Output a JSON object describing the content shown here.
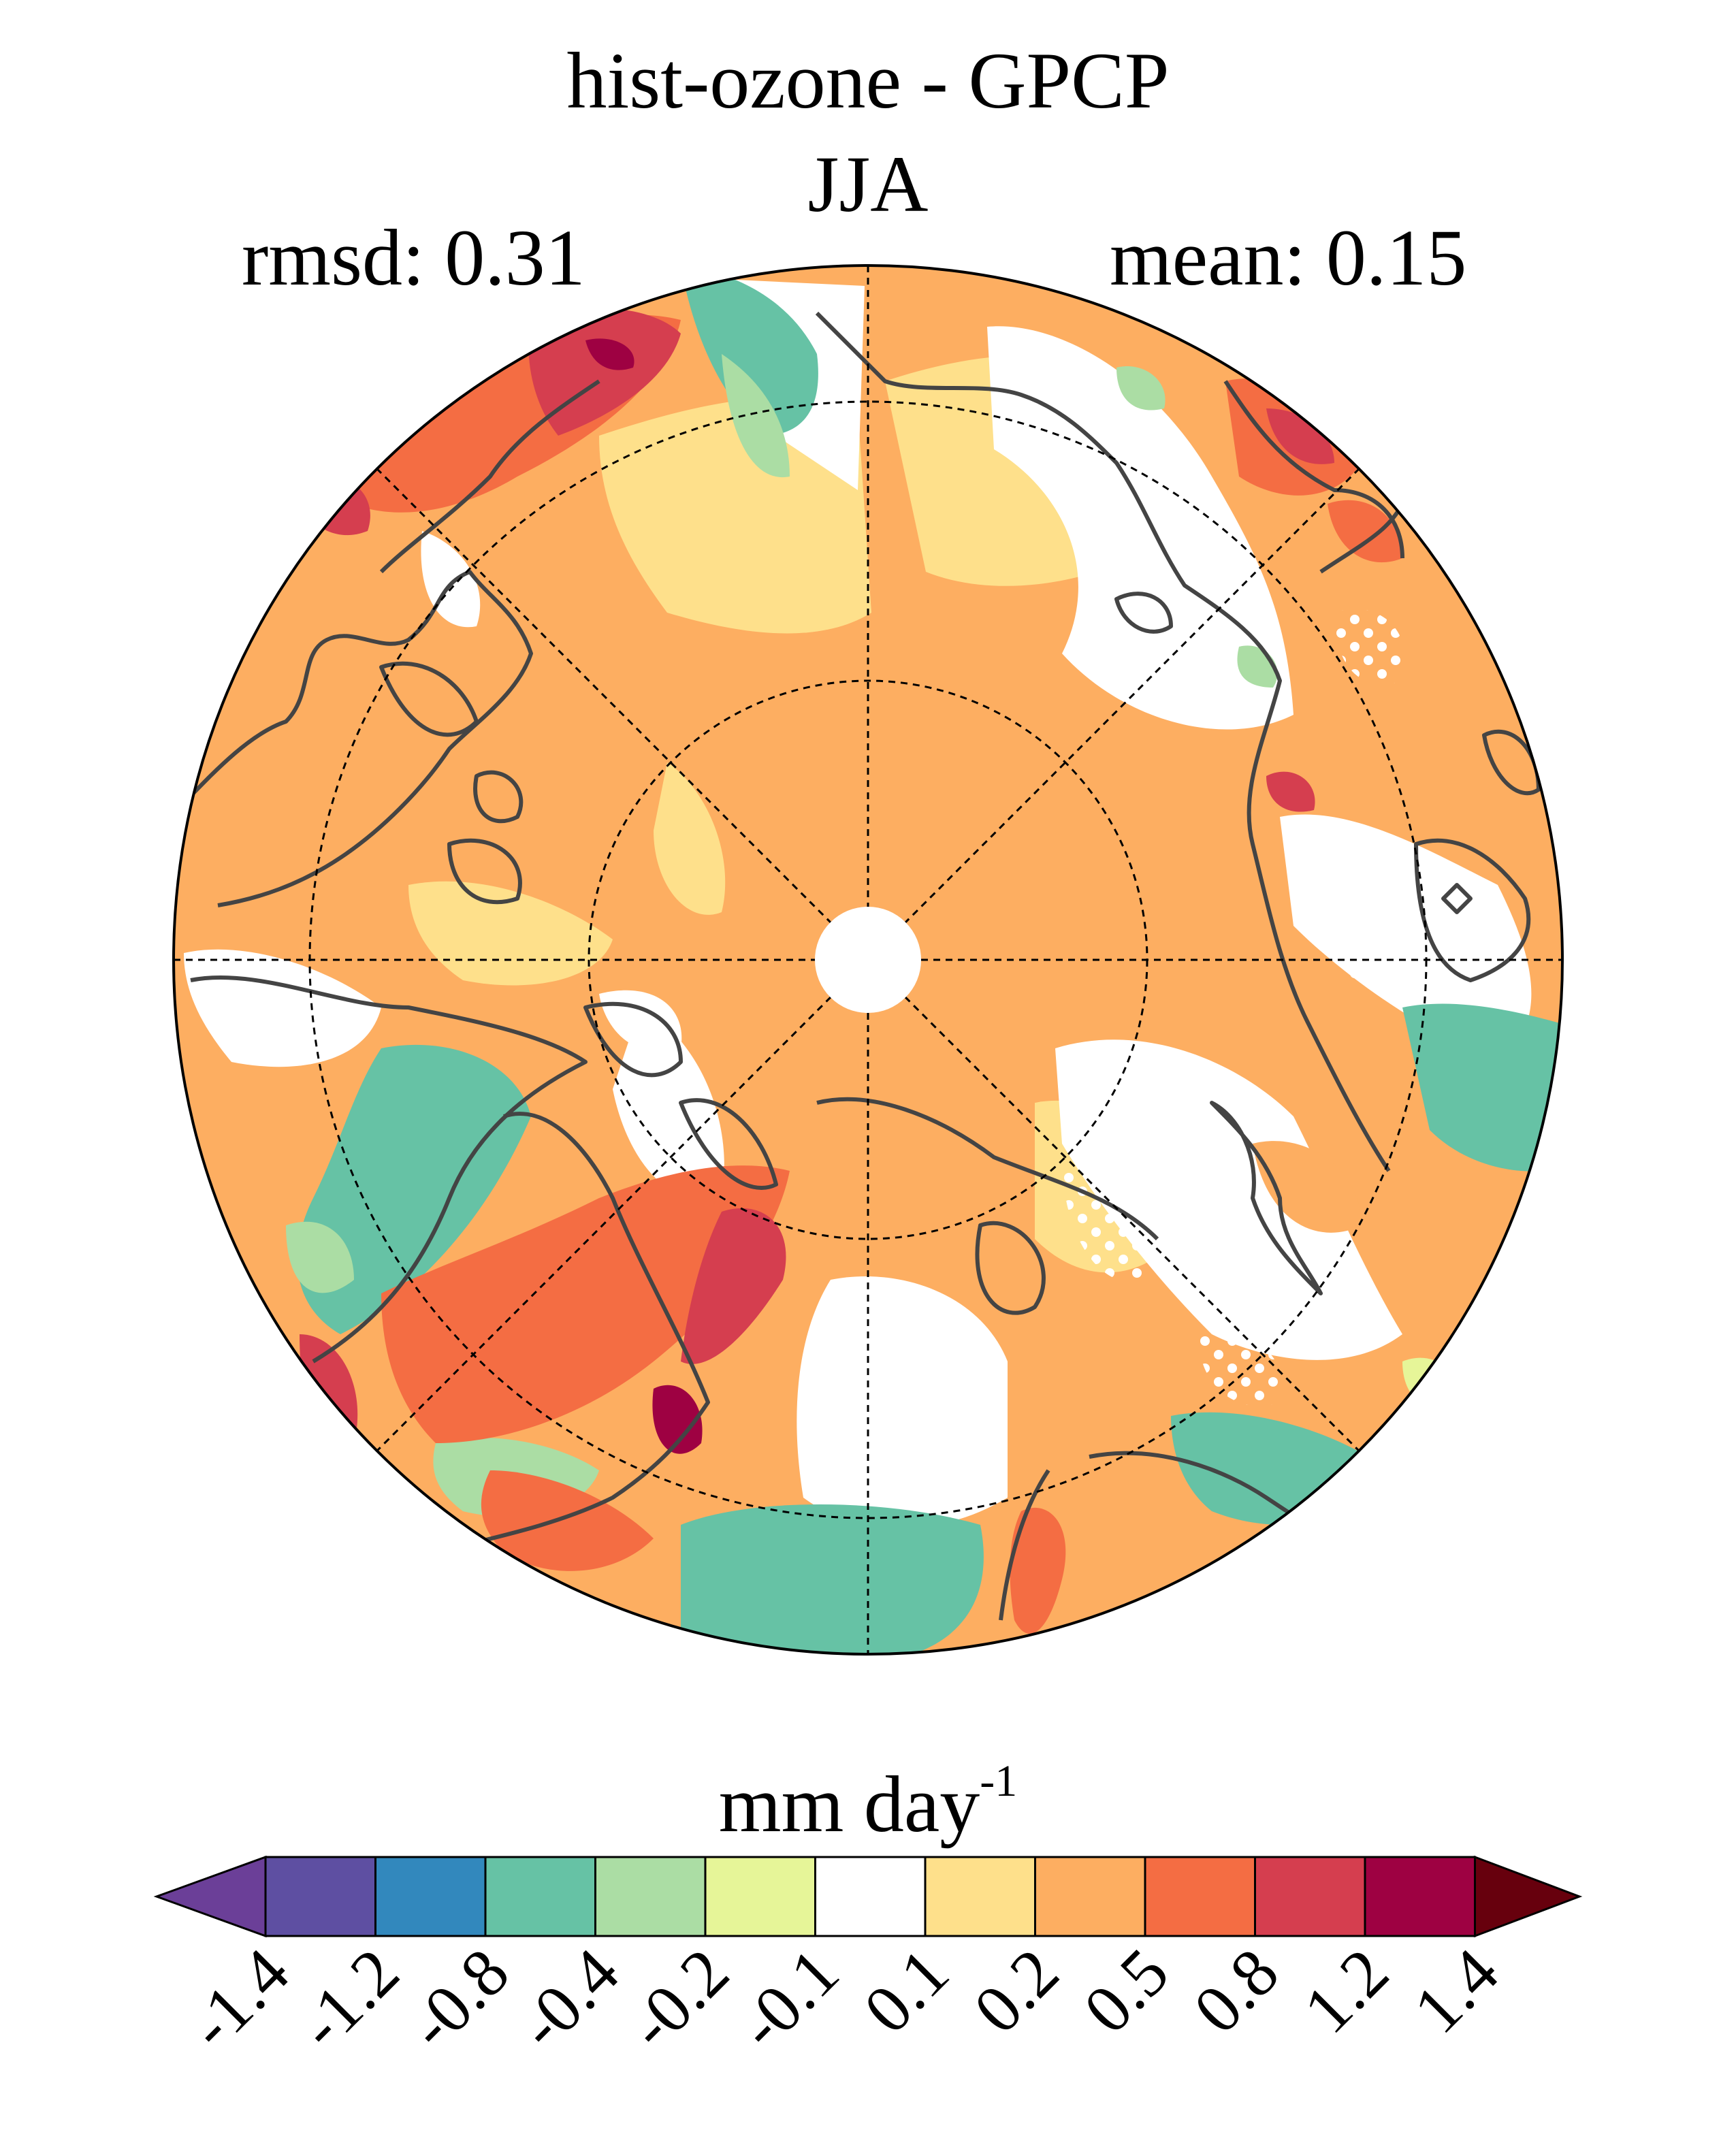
{
  "header": {
    "title": "hist-ozone - GPCP",
    "season": "JJA",
    "rmsd": "rmsd: 0.31",
    "mean": "mean: 0.15"
  },
  "colorbar": {
    "unit_base": "mm day",
    "unit_exp": "-1",
    "ticks": [
      "-1.4",
      "-1.2",
      "-0.8",
      "-0.4",
      "-0.2",
      "-0.1",
      "0.1",
      "0.2",
      "0.5",
      "0.8",
      "1.2",
      "1.4"
    ],
    "colors": [
      "#5e4fa2",
      "#3288bd",
      "#66c2a5",
      "#abdda4",
      "#e6f598",
      "#ffffff",
      "#fee08b",
      "#fdae61",
      "#f46d43",
      "#d53e4f",
      "#9e0142"
    ],
    "under_color": "#6b3f98",
    "over_color": "#67000d"
  },
  "map": {
    "projection": "north-polar-stereographic",
    "field": "precipitation difference",
    "stippling": "white dots mark non-significant regions",
    "center_mask_color": "#ffffff"
  }
}
